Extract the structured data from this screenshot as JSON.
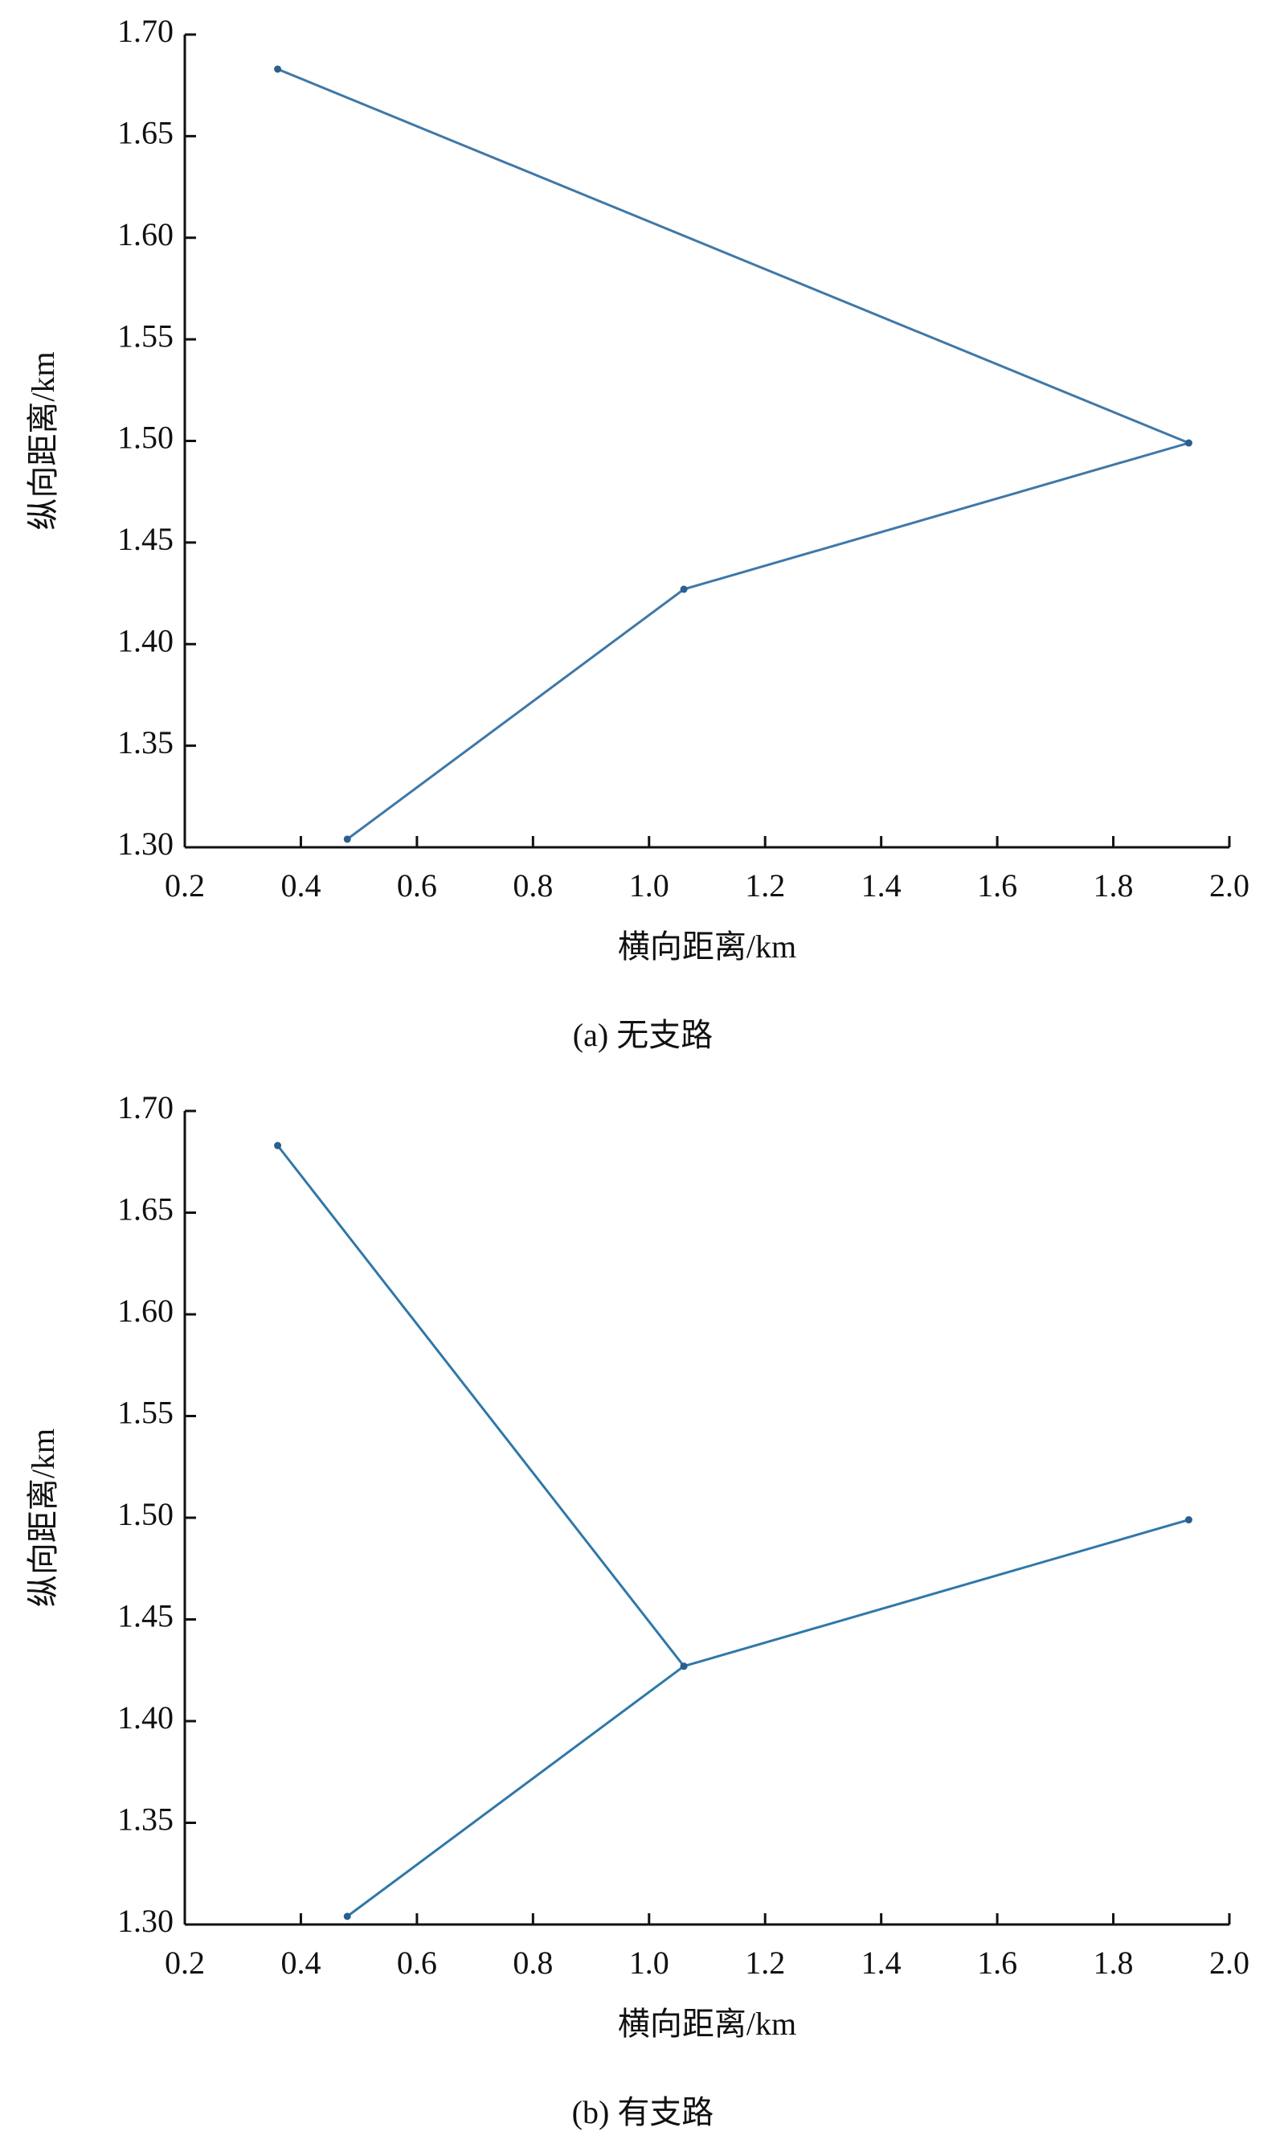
{
  "chart_data": [
    {
      "type": "line",
      "caption": "(a) 无支路",
      "x_label": "横向距离/km",
      "y_label": "纵向距离/km",
      "x": [
        0.36,
        1.93,
        1.06,
        0.48
      ],
      "series": [
        {
          "color": "#3f78a8",
          "values": [
            1.683,
            1.499,
            1.427,
            1.304
          ]
        }
      ],
      "xlim": [
        0.2,
        2.0
      ],
      "xticks": [
        0.2,
        0.4,
        0.6,
        0.8,
        {
          "value": 1,
          "label": "1.0"
        },
        1.2,
        1.4,
        1.6,
        1.8,
        {
          "value": 2,
          "label": "2.0"
        }
      ],
      "ylim": [
        1.3,
        1.7
      ],
      "yticks": [
        {
          "value": 1.3,
          "label": "1.30"
        },
        1.35,
        {
          "value": 1.4,
          "label": "1.40"
        },
        1.45,
        {
          "value": 1.5,
          "label": "1.50"
        },
        1.55,
        {
          "value": 1.6,
          "label": "1.60"
        },
        1.65,
        {
          "value": 1.7,
          "label": "1.70"
        }
      ]
    },
    {
      "type": "line",
      "caption": "(b) 有支路",
      "x_label": "横向距离/km",
      "y_label": "纵向距离/km",
      "x": [
        0.36,
        1.06,
        1.93,
        null,
        0.48,
        1.06
      ],
      "series": [
        {
          "color": "#2f78a8",
          "values": [
            1.683,
            1.427,
            1.499,
            null,
            1.304,
            1.427
          ]
        }
      ],
      "xlim": [
        0.2,
        2.0
      ],
      "xticks": [
        0.2,
        0.4,
        0.6,
        0.8,
        {
          "value": 1,
          "label": "1.0"
        },
        1.2,
        1.4,
        1.6,
        1.8,
        {
          "value": 2,
          "label": "2.0"
        }
      ],
      "ylim": [
        1.3,
        1.7
      ],
      "yticks": [
        {
          "value": 1.3,
          "label": "1.30"
        },
        1.35,
        {
          "value": 1.4,
          "label": "1.40"
        },
        1.45,
        {
          "value": 1.5,
          "label": "1.50"
        },
        1.55,
        {
          "value": 1.6,
          "label": "1.60"
        },
        1.65,
        {
          "value": 1.7,
          "label": "1.70"
        }
      ]
    }
  ]
}
